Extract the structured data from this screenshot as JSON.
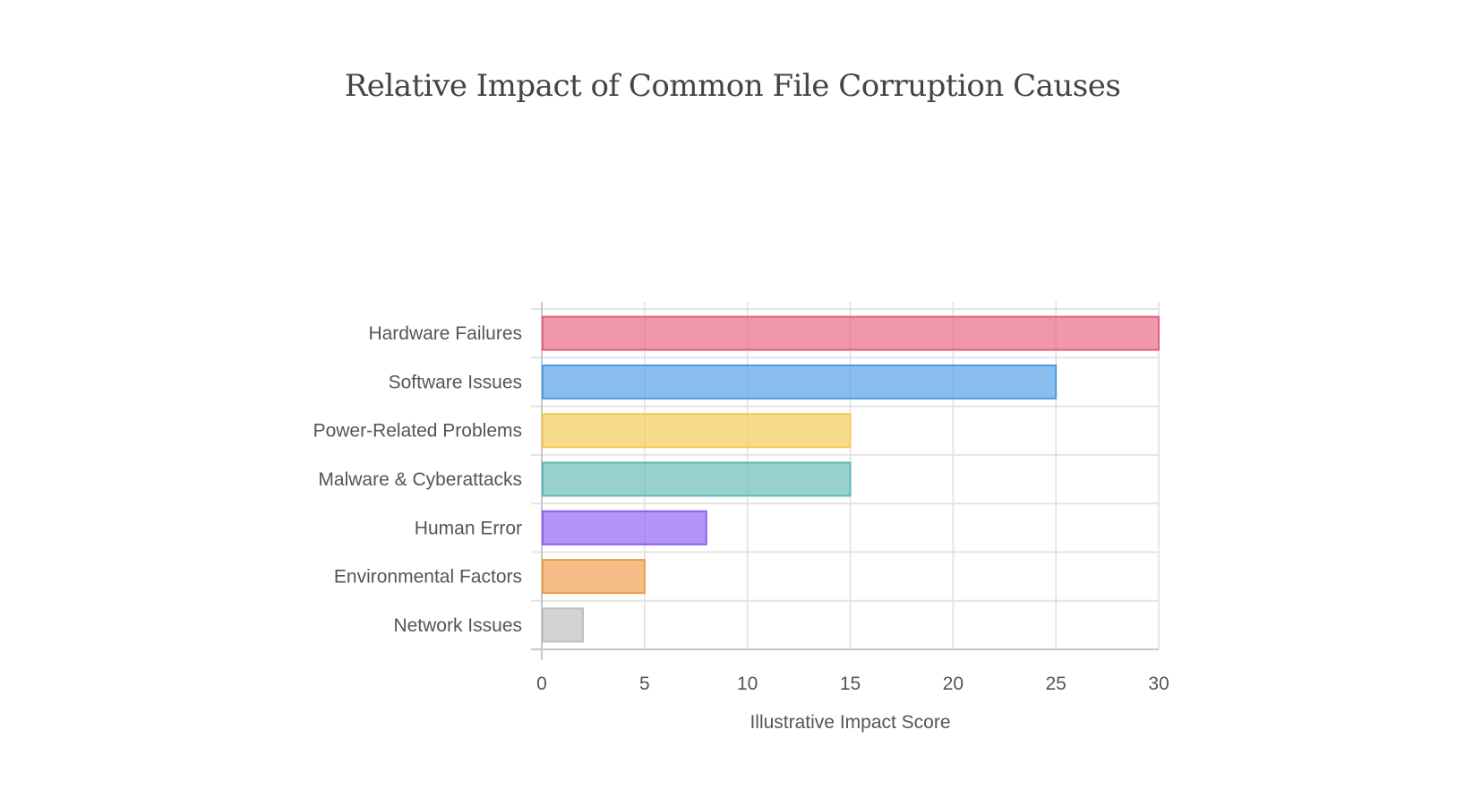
{
  "chart_data": {
    "type": "bar",
    "orientation": "horizontal",
    "title": "Relative Impact of Common File Corruption Causes",
    "xlabel": "Illustrative Impact Score",
    "ylabel": "",
    "categories": [
      "Hardware Failures",
      "Software Issues",
      "Power-Related Problems",
      "Malware & Cyberattacks",
      "Human Error",
      "Environmental Factors",
      "Network Issues"
    ],
    "values": [
      30,
      25,
      15,
      15,
      8,
      5,
      2
    ],
    "colors": [
      "#e8607c",
      "#4a9be6",
      "#f5c94e",
      "#5fb8b3",
      "#8b5cf6",
      "#ef9a45",
      "#bdbdbd"
    ],
    "xlim": [
      0,
      30
    ],
    "xticks": [
      "0",
      "5",
      "10",
      "15",
      "20",
      "25",
      "30"
    ],
    "grid": true,
    "legend": "none"
  }
}
